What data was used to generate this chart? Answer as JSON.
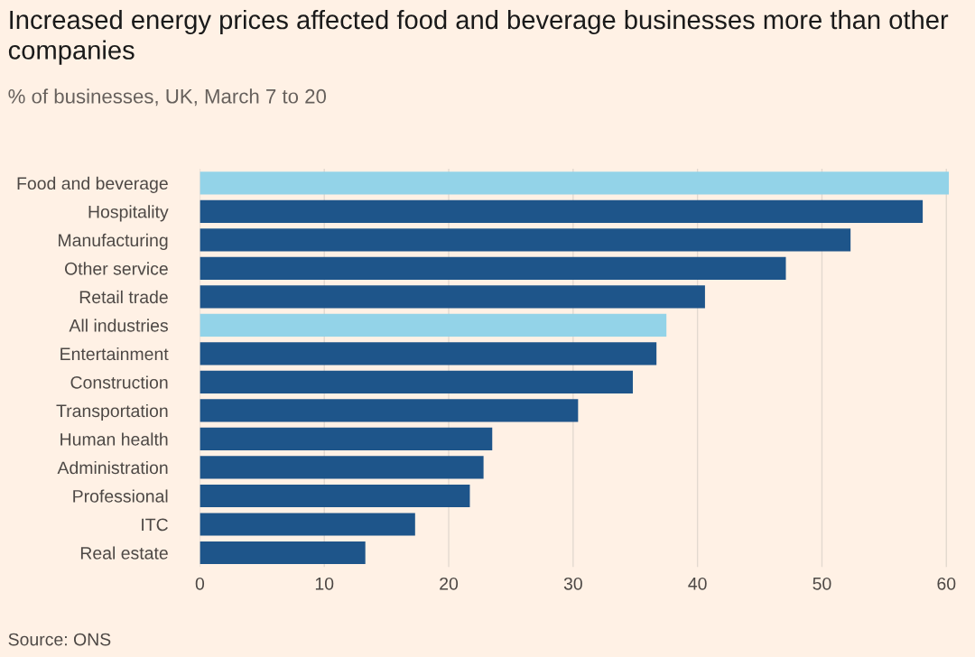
{
  "chart_data": {
    "type": "bar",
    "orientation": "horizontal",
    "title": "Increased energy prices affected food and beverage businesses more than other companies",
    "subtitle": "% of businesses, UK, March 7 to 20",
    "categories": [
      "Food and beverage",
      "Hospitality",
      "Manufacturing",
      "Other service",
      "Retail trade",
      "All industries",
      "Entertainment",
      "Construction",
      "Transportation",
      "Human health",
      "Administration",
      "Professional",
      "ITC",
      "Real estate"
    ],
    "values": [
      60.2,
      58.1,
      52.3,
      47.1,
      40.6,
      37.5,
      36.7,
      34.8,
      30.4,
      23.5,
      22.8,
      21.7,
      17.3,
      13.3
    ],
    "colors": [
      "#93d3e8",
      "#1e558a",
      "#1e558a",
      "#1e558a",
      "#1e558a",
      "#93d3e8",
      "#1e558a",
      "#1e558a",
      "#1e558a",
      "#1e558a",
      "#1e558a",
      "#1e558a",
      "#1e558a",
      "#1e558a"
    ],
    "xlim": [
      0,
      60.5
    ],
    "xticks": [
      0,
      10,
      20,
      30,
      40,
      50,
      60
    ],
    "grid": "x",
    "annotations": [
      "Source: ONS"
    ]
  }
}
